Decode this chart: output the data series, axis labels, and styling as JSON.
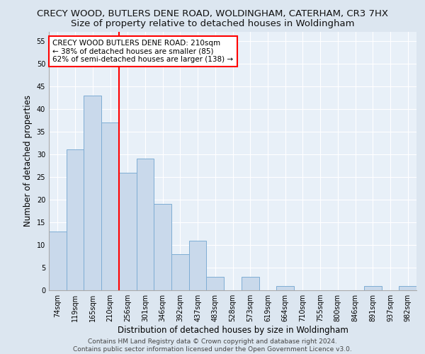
{
  "title_line1": "CRECY WOOD, BUTLERS DENE ROAD, WOLDINGHAM, CATERHAM, CR3 7HX",
  "title_line2": "Size of property relative to detached houses in Woldingham",
  "xlabel": "Distribution of detached houses by size in Woldingham",
  "ylabel": "Number of detached properties",
  "categories": [
    "74sqm",
    "119sqm",
    "165sqm",
    "210sqm",
    "256sqm",
    "301sqm",
    "346sqm",
    "392sqm",
    "437sqm",
    "483sqm",
    "528sqm",
    "573sqm",
    "619sqm",
    "664sqm",
    "710sqm",
    "755sqm",
    "800sqm",
    "846sqm",
    "891sqm",
    "937sqm",
    "982sqm"
  ],
  "values": [
    13,
    31,
    43,
    37,
    26,
    29,
    19,
    8,
    11,
    3,
    0,
    3,
    0,
    1,
    0,
    0,
    0,
    0,
    1,
    0,
    1
  ],
  "bar_color": "#c9d9eb",
  "bar_edge_color": "#7eadd4",
  "vline_index": 3,
  "vline_color": "red",
  "vline_linewidth": 1.5,
  "annotation_text": "CRECY WOOD BUTLERS DENE ROAD: 210sqm\n← 38% of detached houses are smaller (85)\n62% of semi-detached houses are larger (138) →",
  "annotation_box_color": "white",
  "annotation_box_edge_color": "red",
  "ylim": [
    0,
    57
  ],
  "yticks": [
    0,
    5,
    10,
    15,
    20,
    25,
    30,
    35,
    40,
    45,
    50,
    55
  ],
  "fig_background_color": "#dce6f0",
  "plot_background_color": "#e8f0f8",
  "footer_text": "Contains HM Land Registry data © Crown copyright and database right 2024.\nContains public sector information licensed under the Open Government Licence v3.0.",
  "title_fontsize": 9.5,
  "subtitle_fontsize": 9.5,
  "axis_label_fontsize": 8.5,
  "tick_fontsize": 7,
  "annotation_fontsize": 7.5,
  "footer_fontsize": 6.5,
  "grid_color": "#ffffff"
}
